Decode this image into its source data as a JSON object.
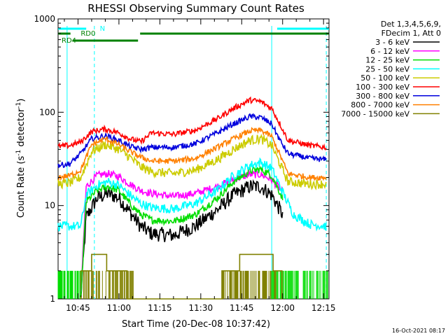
{
  "chart_data": {
    "type": "line",
    "title": "RHESSI Observing Summary Count Rates",
    "xlabel": "Start Time (20-Dec-08 10:37:42)",
    "ylabel_main": "Count Rate (s",
    "ylabel_sup": "-1",
    "ylabel_mid": " detector",
    "ylabel_end": ")",
    "yscale": "log",
    "ylim": [
      1,
      1000
    ],
    "y_ticks": [
      {
        "v": 1,
        "label": "1"
      },
      {
        "v": 10,
        "label": "10"
      },
      {
        "v": 100,
        "label": "100"
      },
      {
        "v": 1000,
        "label": "1000"
      }
    ],
    "xlim": [
      "10:37:42",
      "12:17:00"
    ],
    "x_ticks": [
      "10:45",
      "11:00",
      "11:15",
      "11:30",
      "11:45",
      "12:00",
      "12:15"
    ],
    "legend": {
      "position": "right",
      "header": [
        "Det 1,3,4,5,6,9,",
        "FDecim 1, Att 0"
      ],
      "entries": [
        {
          "label": "3 - 6 keV",
          "color": "#000000"
        },
        {
          "label": "6 - 12 keV",
          "color": "#ff00ff"
        },
        {
          "label": "12 - 25 keV",
          "color": "#00dd00"
        },
        {
          "label": "25 - 50 keV",
          "color": "#00ffff"
        },
        {
          "label": "50 - 100 keV",
          "color": "#cccc00"
        },
        {
          "label": "100 - 300 keV",
          "color": "#ff0000"
        },
        {
          "label": "300 - 800 keV",
          "color": "#0000dd"
        },
        {
          "label": "800 - 7000 keV",
          "color": "#ff8000"
        },
        {
          "label": "7000 - 15000 keV",
          "color": "#808000"
        }
      ]
    },
    "flag_labels": {
      "night": "N",
      "rd0": "RD0",
      "rd4": "RD4"
    },
    "flag_bars": [
      {
        "name": "N",
        "color": "#00ffff",
        "from": "10:37:42",
        "to": "10:48:00"
      },
      {
        "name": "N",
        "color": "#00ffff",
        "from": "11:58:00",
        "to": "12:17:00"
      },
      {
        "name": "RD0",
        "color": "#008000",
        "from": "10:37:42",
        "to": "12:17:00"
      },
      {
        "name": "RD4",
        "color": "#008000",
        "from": "10:43:00",
        "to": "11:07:00"
      }
    ],
    "markers": [
      {
        "time": "10:41:00",
        "style": "solid",
        "color": "#00ffff"
      },
      {
        "time": "10:51:00",
        "style": "dashed",
        "color": "#00ffff"
      },
      {
        "time": "11:56:00",
        "style": "solid",
        "color": "#00ffff"
      },
      {
        "time": "12:16:00",
        "style": "dashed",
        "color": "#00ffff"
      }
    ],
    "series": [
      {
        "name": "3 - 6 keV",
        "color": "#000000",
        "noise": 0.08,
        "points": [
          [
            "10:46:00",
            1
          ],
          [
            "10:48:00",
            7.5
          ],
          [
            "10:52:00",
            12
          ],
          [
            "10:56:00",
            13.5
          ],
          [
            "11:00:00",
            12
          ],
          [
            "11:04:00",
            8.5
          ],
          [
            "11:08:00",
            6
          ],
          [
            "11:12:00",
            5
          ],
          [
            "11:20:00",
            4.8
          ],
          [
            "11:28:00",
            6
          ],
          [
            "11:36:00",
            9
          ],
          [
            "11:42:00",
            13
          ],
          [
            "11:48:00",
            16
          ],
          [
            "11:52:00",
            16
          ],
          [
            "11:56:00",
            13
          ],
          [
            "12:00:00",
            8
          ]
        ]
      },
      {
        "name": "6 - 12 keV",
        "color": "#ff00ff",
        "noise": 0.04,
        "points": [
          [
            "10:46:00",
            1
          ],
          [
            "10:48:00",
            16
          ],
          [
            "10:52:00",
            21
          ],
          [
            "10:56:00",
            22
          ],
          [
            "11:00:00",
            20.5
          ],
          [
            "11:04:00",
            17
          ],
          [
            "11:08:00",
            14.5
          ],
          [
            "11:12:00",
            13.5
          ],
          [
            "11:20:00",
            12.5
          ],
          [
            "11:28:00",
            13.5
          ],
          [
            "11:36:00",
            16
          ],
          [
            "11:42:00",
            19
          ],
          [
            "11:48:00",
            21.5
          ],
          [
            "11:52:00",
            21.5
          ],
          [
            "11:56:00",
            19
          ],
          [
            "12:00:00",
            14
          ]
        ]
      },
      {
        "name": "12 - 25 keV",
        "color": "#00dd00",
        "noise": 0.04,
        "points": [
          [
            "10:46:00",
            1
          ],
          [
            "10:48:00",
            11
          ],
          [
            "10:52:00",
            14.5
          ],
          [
            "10:56:00",
            16
          ],
          [
            "11:00:00",
            14.5
          ],
          [
            "11:04:00",
            10.5
          ],
          [
            "11:08:00",
            8
          ],
          [
            "11:12:00",
            7
          ],
          [
            "11:20:00",
            6.8
          ],
          [
            "11:28:00",
            8
          ],
          [
            "11:36:00",
            12
          ],
          [
            "11:42:00",
            18
          ],
          [
            "11:48:00",
            23.5
          ],
          [
            "11:52:00",
            24.5
          ],
          [
            "11:56:00",
            21
          ],
          [
            "12:00:00",
            12
          ]
        ]
      },
      {
        "name": "25 - 50 keV",
        "color": "#00ffff",
        "noise": 0.05,
        "points": [
          [
            "10:37:42",
            6
          ],
          [
            "10:42:00",
            6
          ],
          [
            "10:46:00",
            6
          ],
          [
            "10:48:00",
            13
          ],
          [
            "10:52:00",
            16.5
          ],
          [
            "10:56:00",
            18
          ],
          [
            "11:00:00",
            16.5
          ],
          [
            "11:04:00",
            13
          ],
          [
            "11:08:00",
            10.5
          ],
          [
            "11:12:00",
            9.5
          ],
          [
            "11:20:00",
            9.2
          ],
          [
            "11:28:00",
            10.5
          ],
          [
            "11:36:00",
            14.5
          ],
          [
            "11:42:00",
            21
          ],
          [
            "11:48:00",
            27
          ],
          [
            "11:52:00",
            29
          ],
          [
            "11:56:00",
            25
          ],
          [
            "12:00:00",
            14
          ],
          [
            "12:04:00",
            8
          ],
          [
            "12:10:00",
            6.3
          ],
          [
            "12:16:00",
            6
          ]
        ]
      },
      {
        "name": "50 - 100 keV",
        "color": "#cccc00",
        "noise": 0.05,
        "points": [
          [
            "10:37:42",
            17
          ],
          [
            "10:42:00",
            17.5
          ],
          [
            "10:46:00",
            20
          ],
          [
            "10:50:00",
            38
          ],
          [
            "10:55:00",
            45
          ],
          [
            "11:00:00",
            40
          ],
          [
            "11:04:00",
            33
          ],
          [
            "11:08:00",
            26
          ],
          [
            "11:12:00",
            23
          ],
          [
            "11:20:00",
            22
          ],
          [
            "11:28:00",
            24
          ],
          [
            "11:36:00",
            31
          ],
          [
            "11:42:00",
            40
          ],
          [
            "11:48:00",
            50
          ],
          [
            "11:52:00",
            52
          ],
          [
            "11:56:00",
            44
          ],
          [
            "11:59:00",
            28
          ],
          [
            "12:02:00",
            18
          ],
          [
            "12:10:00",
            17
          ],
          [
            "12:16:00",
            17
          ]
        ]
      },
      {
        "name": "100 - 300 keV",
        "color": "#ff0000",
        "noise": 0.03,
        "points": [
          [
            "10:37:42",
            43
          ],
          [
            "10:42:00",
            44
          ],
          [
            "10:46:00",
            48
          ],
          [
            "10:50:00",
            62
          ],
          [
            "10:55:00",
            66
          ],
          [
            "11:00:00",
            60
          ],
          [
            "11:04:00",
            52
          ],
          [
            "11:08:00",
            48
          ],
          [
            "11:12:00",
            60
          ],
          [
            "11:20:00",
            58
          ],
          [
            "11:28:00",
            64
          ],
          [
            "11:36:00",
            85
          ],
          [
            "11:42:00",
            110
          ],
          [
            "11:48:00",
            135
          ],
          [
            "11:52:00",
            130
          ],
          [
            "11:56:00",
            110
          ],
          [
            "11:59:00",
            75
          ],
          [
            "12:02:00",
            50
          ],
          [
            "12:10:00",
            44
          ],
          [
            "12:16:00",
            42
          ]
        ]
      },
      {
        "name": "300 - 800 keV",
        "color": "#0000dd",
        "noise": 0.03,
        "points": [
          [
            "10:37:42",
            27
          ],
          [
            "10:42:00",
            28
          ],
          [
            "10:46:00",
            36
          ],
          [
            "10:50:00",
            52
          ],
          [
            "10:55:00",
            56
          ],
          [
            "11:00:00",
            50
          ],
          [
            "11:04:00",
            43
          ],
          [
            "11:08:00",
            40
          ],
          [
            "11:12:00",
            42
          ],
          [
            "11:20:00",
            42
          ],
          [
            "11:28:00",
            46
          ],
          [
            "11:36:00",
            60
          ],
          [
            "11:42:00",
            75
          ],
          [
            "11:48:00",
            90
          ],
          [
            "11:52:00",
            88
          ],
          [
            "11:56:00",
            75
          ],
          [
            "11:59:00",
            50
          ],
          [
            "12:02:00",
            36
          ],
          [
            "12:10:00",
            32
          ],
          [
            "12:16:00",
            31
          ]
        ]
      },
      {
        "name": "800 - 7000 keV",
        "color": "#ff8000",
        "noise": 0.03,
        "points": [
          [
            "10:37:42",
            20
          ],
          [
            "10:42:00",
            21
          ],
          [
            "10:46:00",
            24
          ],
          [
            "10:50:00",
            45
          ],
          [
            "10:55:00",
            52
          ],
          [
            "11:00:00",
            45
          ],
          [
            "11:04:00",
            38
          ],
          [
            "11:08:00",
            33
          ],
          [
            "11:12:00",
            30
          ],
          [
            "11:20:00",
            30
          ],
          [
            "11:28:00",
            32
          ],
          [
            "11:36:00",
            42
          ],
          [
            "11:42:00",
            52
          ],
          [
            "11:48:00",
            63
          ],
          [
            "11:52:00",
            64
          ],
          [
            "11:56:00",
            55
          ],
          [
            "11:59:00",
            35
          ],
          [
            "12:02:00",
            22
          ],
          [
            "12:10:00",
            20
          ],
          [
            "12:16:00",
            20
          ]
        ]
      },
      {
        "name": "7000 - 15000 keV",
        "color": "#808000",
        "noise": 0.0,
        "points": [
          [
            "10:46:00",
            1.6
          ],
          [
            "10:50:00",
            2.5
          ],
          [
            "10:54:00",
            2.6
          ],
          [
            "10:58:00",
            2.3
          ],
          [
            "11:02:00",
            1.6
          ],
          [
            "11:06:00",
            1.2
          ],
          [
            "11:20:00",
            1.0
          ],
          [
            "11:36:00",
            1.3
          ],
          [
            "11:42:00",
            2.2
          ],
          [
            "11:48:00",
            3.2
          ],
          [
            "11:52:00",
            3.3
          ],
          [
            "11:56:00",
            2.6
          ],
          [
            "12:00:00",
            1.4
          ]
        ]
      }
    ],
    "low_band_floor": {
      "value": 1,
      "alt_value": 2,
      "colors": [
        "#00dd00",
        "#808000"
      ]
    }
  },
  "timestamp": "16-Oct-2021 08:17"
}
